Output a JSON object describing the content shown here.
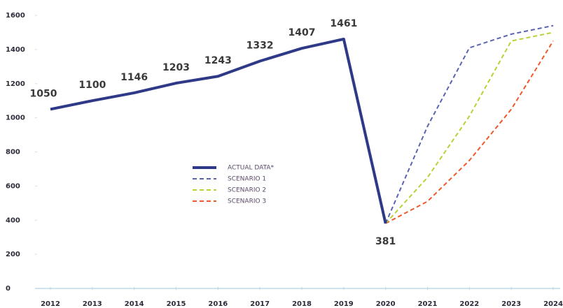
{
  "chart_data": {
    "type": "line",
    "categories": [
      "2012",
      "2013",
      "2014",
      "2015",
      "2016",
      "2017",
      "2018",
      "2019",
      "2020",
      "2021",
      "2022",
      "2023",
      "2024"
    ],
    "series": [
      {
        "name": "ACTUAL DATA*",
        "color": "#2e3a87",
        "dashed": false,
        "show_values": true,
        "values": [
          1050,
          1100,
          1146,
          1203,
          1243,
          1332,
          1407,
          1461,
          381,
          null,
          null,
          null,
          null
        ]
      },
      {
        "name": "SCENARIO 1",
        "color": "#5a64b0",
        "dashed": true,
        "show_values": false,
        "values": [
          null,
          null,
          null,
          null,
          null,
          null,
          null,
          null,
          381,
          950,
          1410,
          1490,
          1540
        ]
      },
      {
        "name": "SCENARIO 2",
        "color": "#b5d334",
        "dashed": true,
        "show_values": false,
        "values": [
          null,
          null,
          null,
          null,
          null,
          null,
          null,
          null,
          381,
          650,
          1010,
          1450,
          1500
        ]
      },
      {
        "name": "SCENARIO 3",
        "color": "#ee5a2a",
        "dashed": true,
        "show_values": false,
        "values": [
          null,
          null,
          null,
          null,
          null,
          null,
          null,
          null,
          381,
          510,
          750,
          1050,
          1450
        ]
      }
    ],
    "ylim": [
      0,
      1600
    ],
    "yticks": [
      0,
      200,
      400,
      600,
      800,
      1000,
      1200,
      1400,
      1600
    ],
    "grid": false,
    "legend": "center"
  }
}
